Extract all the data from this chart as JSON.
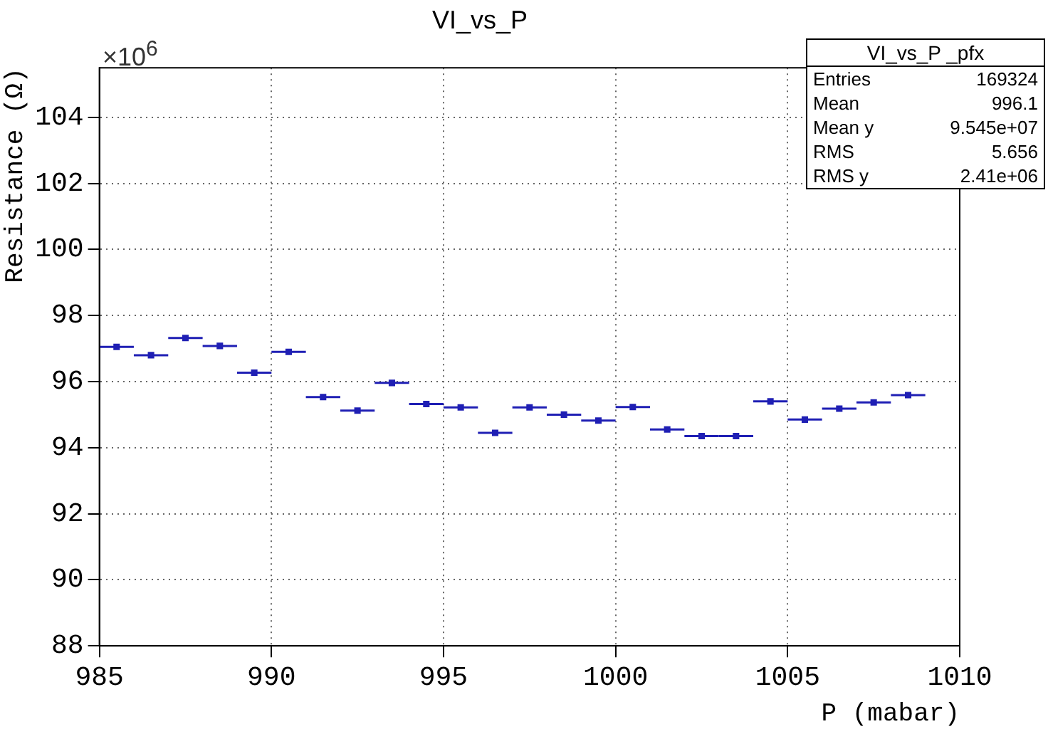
{
  "chart_data": {
    "type": "scatter",
    "title": "VI_vs_P",
    "xlabel": "P (mabar)",
    "ylabel": "Resistance (Ω)",
    "annotations": [
      "×10$^{6}$",
      "VI_vs_P _pfx",
      "Entries 169324",
      "Mean 996.1",
      "Mean y 9.545e+07",
      "RMS 5.656",
      "RMS y 2.41e+06"
    ],
    "x": [
      985.5,
      986.5,
      987.5,
      988.5,
      989.5,
      990.5,
      991.5,
      992.5,
      993.5,
      994.5,
      995.5,
      996.5,
      997.5,
      998.5,
      999.5,
      1000.5,
      1001.5,
      1002.5,
      1003.5,
      1004.5,
      1005.5,
      1006.5,
      1007.5,
      1008.5
    ],
    "series": [
      {
        "color": "#1f1fb4",
        "values": [
          97.05,
          96.8,
          97.32,
          97.08,
          96.27,
          96.9,
          95.53,
          95.12,
          95.96,
          95.32,
          95.22,
          94.45,
          95.22,
          95.0,
          94.82,
          95.23,
          94.55,
          94.35,
          94.35,
          95.4,
          94.85,
          95.18,
          95.37,
          95.59
        ],
        "xerrors": [
          0.5,
          0.5,
          0.5,
          0.5,
          0.5,
          0.5,
          0.5,
          0.5,
          0.5,
          0.5,
          0.5,
          0.5,
          0.5,
          0.5,
          0.5,
          0.5,
          0.5,
          0.5,
          0.5,
          0.5,
          0.5,
          0.5,
          0.5,
          0.5
        ]
      }
    ],
    "xlim": [
      985,
      1010
    ],
    "xticks": [
      985,
      990,
      995,
      1000,
      1005,
      1010
    ],
    "ylim": [
      88,
      105.5
    ],
    "yticks": [
      88,
      90,
      92,
      94,
      96,
      98,
      100,
      102,
      104
    ],
    "grid": true,
    "legend": false,
    "marker": "square"
  }
}
